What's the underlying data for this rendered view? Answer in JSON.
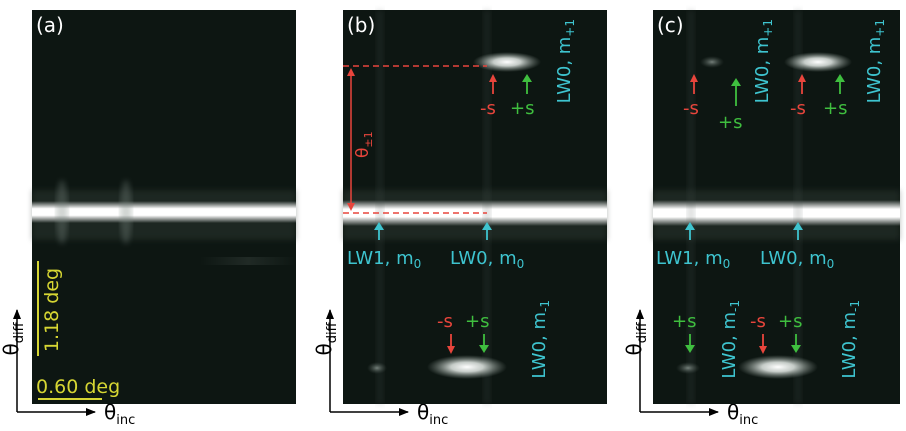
{
  "colors": {
    "background": "#ffffff",
    "panel": "#0d1612",
    "beam": "#ffffff",
    "cyan_label": "#3ec4cf",
    "red_label": "#e8453c",
    "green_label": "#3fbf3f",
    "scale_bar": "#d6d633",
    "axis": "#000000"
  },
  "panels": [
    {
      "id": "a",
      "label": "(a)"
    },
    {
      "id": "b",
      "label": "(b)"
    },
    {
      "id": "c",
      "label": "(c)"
    }
  ],
  "scale_bars": {
    "vertical": "1.18 deg",
    "horizontal": "0.60 deg"
  },
  "axes": {
    "y_main": "θ",
    "y_sub": "diff",
    "x_main": "θ",
    "x_sub": "inc"
  },
  "angle_label": {
    "main": "θ",
    "sub": "±1"
  },
  "labels": {
    "minus_s": "-s",
    "plus_s": "+s",
    "lw0": "LW0, m",
    "lw1": "LW1, m",
    "order_plus": "+1",
    "order_minus": "-1",
    "order_zero": "0"
  }
}
